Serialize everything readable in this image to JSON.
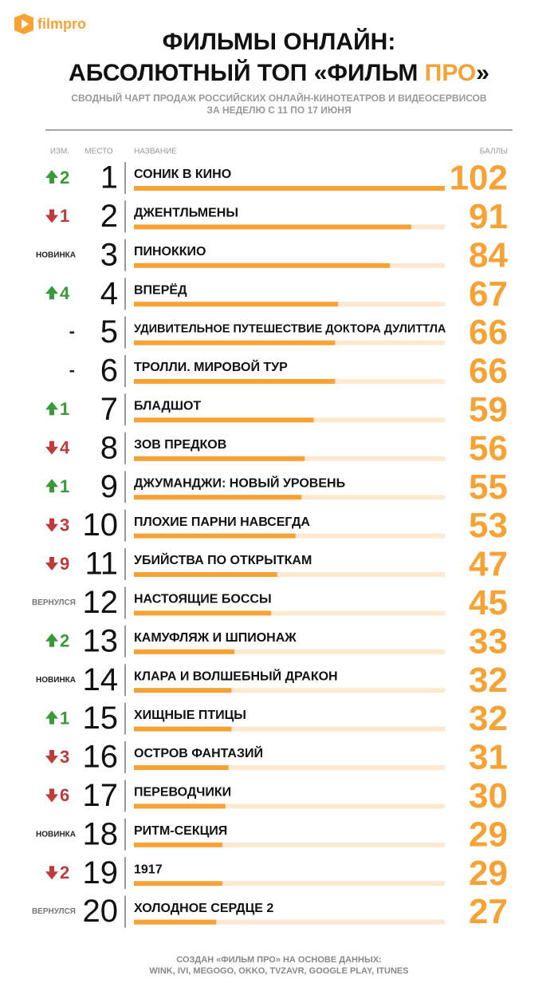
{
  "logo": "filmpro",
  "chart_data": {
    "type": "bar",
    "title_line1": "ФИЛЬМЫ ОНЛАЙН:",
    "title_line2": "АБСОЛЮТНЫЙ ТОП «ФИЛЬМ ",
    "title_highlight": "ПРО",
    "title_end": "»",
    "subtitle_line1": "СВОДНЫЙ ЧАРТ ПРОДАЖ РОССИЙСКИХ ОНЛАЙН-КИНОТЕАТРОВ И ВИДЕОСЕРВИСОВ",
    "subtitle_line2": "ЗА НЕДЕЛЮ С 11 ПО 17 ИЮНЯ",
    "column_headers": {
      "change": "ИЗМ.",
      "rank": "МЕСТО",
      "name": "НАЗВАНИЕ",
      "score": "БАЛЛЫ"
    },
    "ranks": [
      1,
      2,
      3,
      4,
      5,
      6,
      7,
      8,
      9,
      10,
      11,
      12,
      13,
      14,
      15,
      16,
      17,
      18,
      19,
      20
    ],
    "changes": [
      {
        "trend": "up",
        "label": "2"
      },
      {
        "trend": "down",
        "label": "1"
      },
      {
        "trend": "none",
        "label": "НОВИНКА"
      },
      {
        "trend": "up",
        "label": "4"
      },
      {
        "trend": "none",
        "label": "-"
      },
      {
        "trend": "none",
        "label": "-"
      },
      {
        "trend": "up",
        "label": "1"
      },
      {
        "trend": "down",
        "label": "4"
      },
      {
        "trend": "up",
        "label": "1"
      },
      {
        "trend": "down",
        "label": "3"
      },
      {
        "trend": "down",
        "label": "9"
      },
      {
        "trend": "none",
        "label": "ВЕРНУЛСЯ"
      },
      {
        "trend": "up",
        "label": "2"
      },
      {
        "trend": "none",
        "label": "НОВИНКА"
      },
      {
        "trend": "up",
        "label": "1"
      },
      {
        "trend": "down",
        "label": "3"
      },
      {
        "trend": "down",
        "label": "6"
      },
      {
        "trend": "none",
        "label": "НОВИНКА"
      },
      {
        "trend": "down",
        "label": "2"
      },
      {
        "trend": "none",
        "label": "ВЕРНУЛСЯ"
      }
    ],
    "categories": [
      "СОНИК В КИНО",
      "ДЖЕНТЛЬМЕНЫ",
      "ПИНОККИО",
      "ВПЕРЁД",
      "УДИВИТЕЛЬНОЕ ПУТЕШЕСТВИЕ ДОКТОРА ДУЛИТТЛА",
      "ТРОЛЛИ. МИРОВОЙ ТУР",
      "БЛАДШОТ",
      "ЗОВ ПРЕДКОВ",
      "ДЖУМАНДЖИ: НОВЫЙ УРОВЕНЬ",
      "ПЛОХИЕ ПАРНИ НАВСЕГДА",
      "УБИЙСТВА ПО ОТКРЫТКАМ",
      "НАСТОЯЩИЕ БОССЫ",
      "КАМУФЛЯЖ И ШПИОНАЖ",
      "КЛАРА И ВОЛШЕБНЫЙ ДРАКОН",
      "ХИЩНЫЕ ПТИЦЫ",
      "ОСТРОВ ФАНТАЗИЙ",
      "ПЕРЕВОДЧИКИ",
      "РИТМ-СЕКЦИЯ",
      "1917",
      "ХОЛОДНОЕ СЕРДЦЕ 2"
    ],
    "values": [
      102,
      91,
      84,
      67,
      66,
      66,
      59,
      56,
      55,
      53,
      47,
      45,
      33,
      32,
      32,
      31,
      30,
      29,
      29,
      27
    ],
    "color": "#f7a234",
    "xlim": [
      0,
      102
    ],
    "footer_line1": "СОЗДАН «ФИЛЬМ ПРО» НА ОСНОВЕ ДАННЫХ:",
    "footer_line2": "WINK, IVI, MEGOGO, OKKO, TVZAVR, GOOGLE PLAY, ITUNES"
  }
}
